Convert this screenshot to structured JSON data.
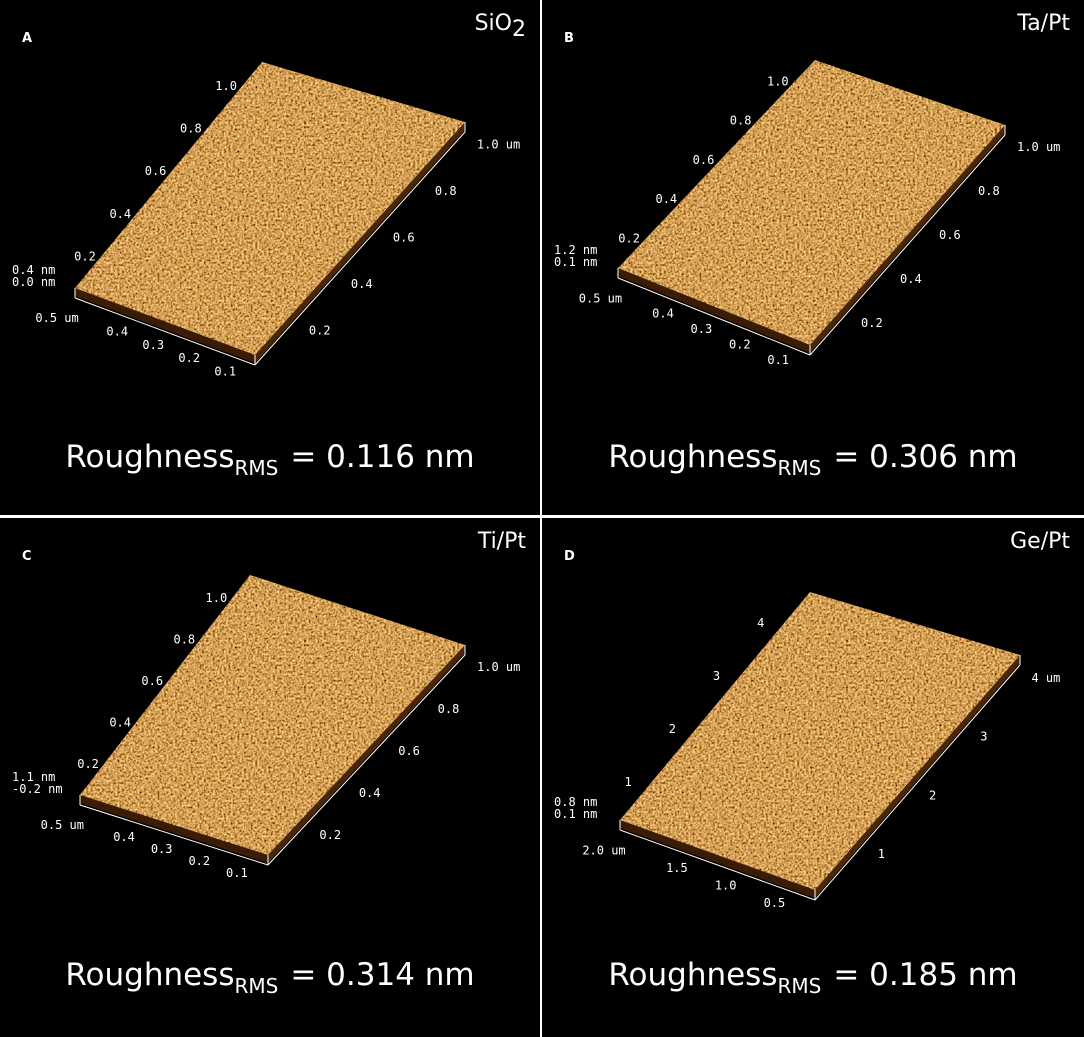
{
  "panels": [
    {
      "letter": "A",
      "material": {
        "text": "SiO",
        "subscript": "2"
      },
      "height_labels": [
        "0.4 nm",
        "0.0 nm"
      ],
      "front_labels": [
        "0.5 um",
        "0.4",
        "0.3",
        "0.2",
        "0.1"
      ],
      "right_labels": [
        "1.0 um",
        "0.8",
        "0.6",
        "0.4",
        "0.2"
      ],
      "left_labels": [
        "0.2",
        "0.4",
        "0.6",
        "0.8",
        "1.0"
      ],
      "roughness": {
        "label": "Roughness",
        "subscript": "RMS",
        "value_text": "= 0.116 nm"
      }
    },
    {
      "letter": "B",
      "material": {
        "text": "Ta/Pt"
      },
      "height_labels": [
        "1.2 nm",
        "0.1 nm"
      ],
      "front_labels": [
        "0.5 um",
        "0.4",
        "0.3",
        "0.2",
        "0.1"
      ],
      "right_labels": [
        "1.0 um",
        "0.8",
        "0.6",
        "0.4",
        "0.2"
      ],
      "left_labels": [
        "0.2",
        "0.4",
        "0.6",
        "0.8",
        "1.0"
      ],
      "roughness": {
        "label": "Roughness",
        "subscript": "RMS",
        "value_text": "= 0.306 nm"
      }
    },
    {
      "letter": "C",
      "material": {
        "text": "Ti/Pt"
      },
      "height_labels": [
        "1.1 nm",
        "-0.2 nm"
      ],
      "front_labels": [
        "0.5 um",
        "0.4",
        "0.3",
        "0.2",
        "0.1"
      ],
      "right_labels": [
        "1.0 um",
        "0.8",
        "0.6",
        "0.4",
        "0.2"
      ],
      "left_labels": [
        "0.2",
        "0.4",
        "0.6",
        "0.8",
        "1.0"
      ],
      "roughness": {
        "label": "Roughness",
        "subscript": "RMS",
        "value_text": "= 0.314 nm"
      }
    },
    {
      "letter": "D",
      "material": {
        "text": "Ge/Pt"
      },
      "height_labels": [
        "0.8 nm",
        "0.1 nm"
      ],
      "front_labels": [
        "2.0 um",
        "1.5",
        "1.0",
        "0.5"
      ],
      "right_labels": [
        "4 um",
        "3",
        "2",
        "1"
      ],
      "left_labels": [
        "1",
        "2",
        "3",
        "4"
      ],
      "roughness": {
        "label": "Roughness",
        "subscript": "RMS",
        "value_text": "= 0.185 nm"
      }
    }
  ]
}
